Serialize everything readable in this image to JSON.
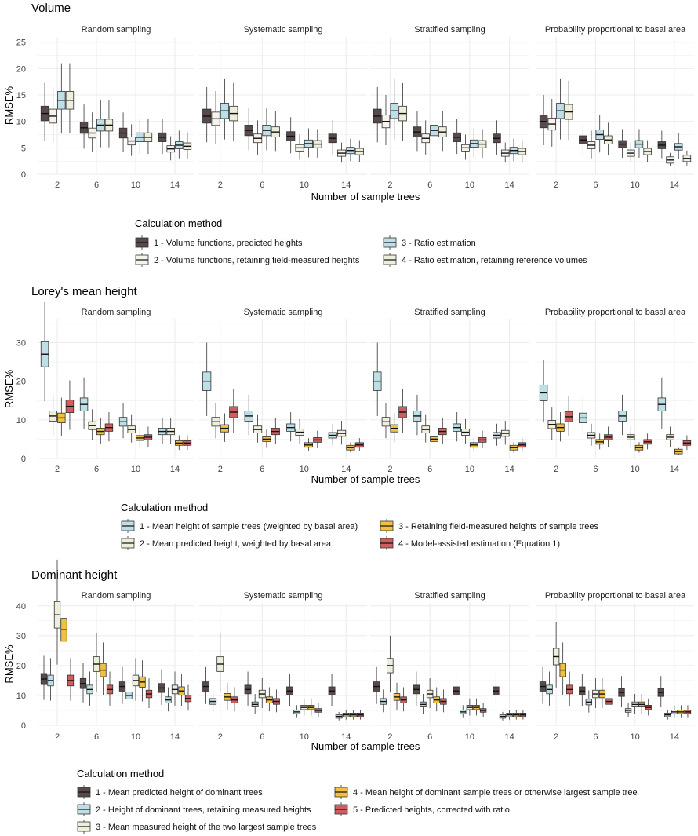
{
  "chart_data": [
    {
      "type": "boxplot",
      "title": "Volume",
      "facets": [
        "Random sampling",
        "Systematic sampling",
        "Stratified sampling",
        "Probability proportional to basal area"
      ],
      "categories": [
        "2",
        "6",
        "10",
        "14"
      ],
      "xlabel": "Number of sample trees",
      "ylabel": "RMSE%",
      "ylim": [
        0,
        26
      ],
      "yticks": [
        "0",
        "5",
        "10",
        "15",
        "20",
        "25"
      ],
      "legend_title": "Calculation method",
      "series": [
        {
          "name": "1 - Volume functions, predicted heights",
          "color": "#584a4a",
          "medians": [
            [
              11.5,
              8.8,
              7.8,
              7.0
            ],
            [
              11.0,
              8.3,
              7.2,
              6.8
            ],
            [
              11.0,
              8.0,
              7.0,
              6.8
            ],
            [
              10.0,
              6.5,
              5.7,
              5.5
            ]
          ]
        },
        {
          "name": "2 - Volume functions, retaining field-measured heights",
          "color": "#f6f3ec",
          "medians": [
            [
              11.0,
              7.8,
              6.3,
              4.8
            ],
            [
              10.5,
              6.8,
              5.0,
              4.0
            ],
            [
              10.0,
              6.8,
              5.0,
              4.0
            ],
            [
              9.5,
              5.5,
              4.0,
              2.7
            ]
          ]
        },
        {
          "name": "3 - Ratio estimation",
          "color": "#bfdfe6",
          "medians": [
            [
              14.0,
              9.3,
              7.0,
              5.5
            ],
            [
              12.0,
              8.3,
              5.8,
              4.5
            ],
            [
              12.0,
              8.3,
              5.8,
              4.5
            ],
            [
              12.0,
              7.5,
              5.7,
              5.2
            ]
          ]
        },
        {
          "name": "4 - Ratio estimation, retaining reference volumes",
          "color": "#eeeedd",
          "medians": [
            [
              14.0,
              9.3,
              7.0,
              5.3
            ],
            [
              11.5,
              8.0,
              5.7,
              4.3
            ],
            [
              11.5,
              8.0,
              5.7,
              4.3
            ],
            [
              11.8,
              6.5,
              4.3,
              3.0
            ]
          ]
        }
      ]
    },
    {
      "type": "boxplot",
      "title": "Lorey's mean height",
      "facets": [
        "Random sampling",
        "Systematic sampling",
        "Stratified sampling",
        "Probability proportional to basal area"
      ],
      "categories": [
        "2",
        "6",
        "10",
        "14"
      ],
      "xlabel": "Number of sample trees",
      "ylabel": "RMSE%",
      "ylim": [
        0,
        36
      ],
      "yticks": [
        "0",
        "10",
        "20",
        "30"
      ],
      "legend_title": "Calculation method",
      "series": [
        {
          "name": "1 - Mean height of sample trees (weighted by basal area)",
          "color": "#bfdfe6",
          "medians": [
            [
              27.0,
              14.0,
              9.5,
              7.0
            ],
            [
              20.0,
              11.0,
              8.0,
              6.0
            ],
            [
              20.0,
              11.0,
              8.0,
              6.0
            ],
            [
              17.0,
              10.5,
              11.0,
              14.0
            ]
          ]
        },
        {
          "name": "2 - Mean predicted height, weighted by basal area",
          "color": "#eeeedd",
          "medians": [
            [
              11.0,
              8.5,
              7.5,
              7.0
            ],
            [
              9.5,
              7.5,
              6.8,
              6.5
            ],
            [
              9.5,
              7.5,
              6.8,
              6.5
            ],
            [
              8.8,
              6.0,
              5.5,
              5.5
            ]
          ]
        },
        {
          "name": "3 - Retaining field-measured heights of sample trees",
          "color": "#f0c040",
          "medians": [
            [
              10.5,
              7.0,
              5.3,
              4.0
            ],
            [
              7.8,
              5.0,
              3.5,
              2.8
            ],
            [
              7.8,
              5.0,
              3.5,
              2.8
            ],
            [
              8.0,
              4.3,
              2.8,
              1.8
            ]
          ]
        },
        {
          "name": "4 - Model-assisted estimation (Equation 1)",
          "color": "#cf5f5f",
          "medians": [
            [
              13.5,
              8.0,
              5.5,
              4.0
            ],
            [
              12.0,
              7.0,
              4.8,
              3.5
            ],
            [
              12.0,
              7.0,
              4.8,
              3.5
            ],
            [
              10.8,
              5.5,
              4.3,
              4.0
            ]
          ]
        }
      ]
    },
    {
      "type": "boxplot",
      "title": "Dominant height",
      "facets": [
        "Random sampling",
        "Systematic sampling",
        "Stratified sampling",
        "Probability proportional to basal area"
      ],
      "categories": [
        "2",
        "6",
        "10",
        "14"
      ],
      "xlabel": "Number of sample trees",
      "ylabel": "RMSE%",
      "ylim": [
        0,
        41
      ],
      "yticks": [
        "0",
        "10",
        "20",
        "30",
        "40"
      ],
      "legend_title": "Calculation method",
      "series": [
        {
          "name": "1 - Mean predicted height of dominant trees",
          "color": "#584a4a",
          "medians": [
            [
              15.5,
              14.0,
              13.0,
              12.5
            ],
            [
              13.0,
              12.0,
              11.5,
              11.5
            ],
            [
              13.0,
              12.0,
              11.5,
              11.5
            ],
            [
              13.0,
              11.5,
              11.0,
              11.0
            ]
          ]
        },
        {
          "name": "2 - Height of dominant trees, retaining measured heights",
          "color": "#bfdfe6",
          "medians": [
            [
              15.0,
              12.0,
              10.0,
              8.5
            ],
            [
              8.0,
              7.0,
              4.5,
              3.0
            ],
            [
              8.0,
              7.0,
              4.5,
              3.0
            ],
            [
              12.0,
              7.8,
              5.0,
              3.5
            ]
          ]
        },
        {
          "name": "3 - Mean measured height of the two largest sample trees",
          "color": "#eeeedd",
          "medians": [
            [
              37.0,
              20.5,
              15.0,
              12.0
            ],
            [
              20.5,
              10.5,
              6.0,
              3.5
            ],
            [
              20.0,
              10.5,
              6.0,
              3.5
            ],
            [
              23.0,
              10.5,
              7.0,
              4.5
            ]
          ]
        },
        {
          "name": "4 - Mean height of dominant sample trees or otherwise largest sample tree",
          "color": "#f0c040",
          "medians": [
            [
              32.0,
              18.5,
              14.5,
              11.5
            ],
            [
              9.5,
              8.5,
              6.0,
              3.5
            ],
            [
              9.5,
              8.5,
              6.0,
              3.5
            ],
            [
              18.5,
              10.5,
              7.0,
              4.5
            ]
          ]
        },
        {
          "name": "5 - Predicted heights, corrected with ratio",
          "color": "#cf5f5f",
          "medians": [
            [
              15.0,
              12.0,
              10.5,
              9.0
            ],
            [
              8.5,
              8.0,
              5.0,
              3.5
            ],
            [
              8.5,
              8.0,
              5.0,
              3.5
            ],
            [
              12.0,
              8.0,
              6.0,
              4.5
            ]
          ]
        }
      ]
    }
  ]
}
